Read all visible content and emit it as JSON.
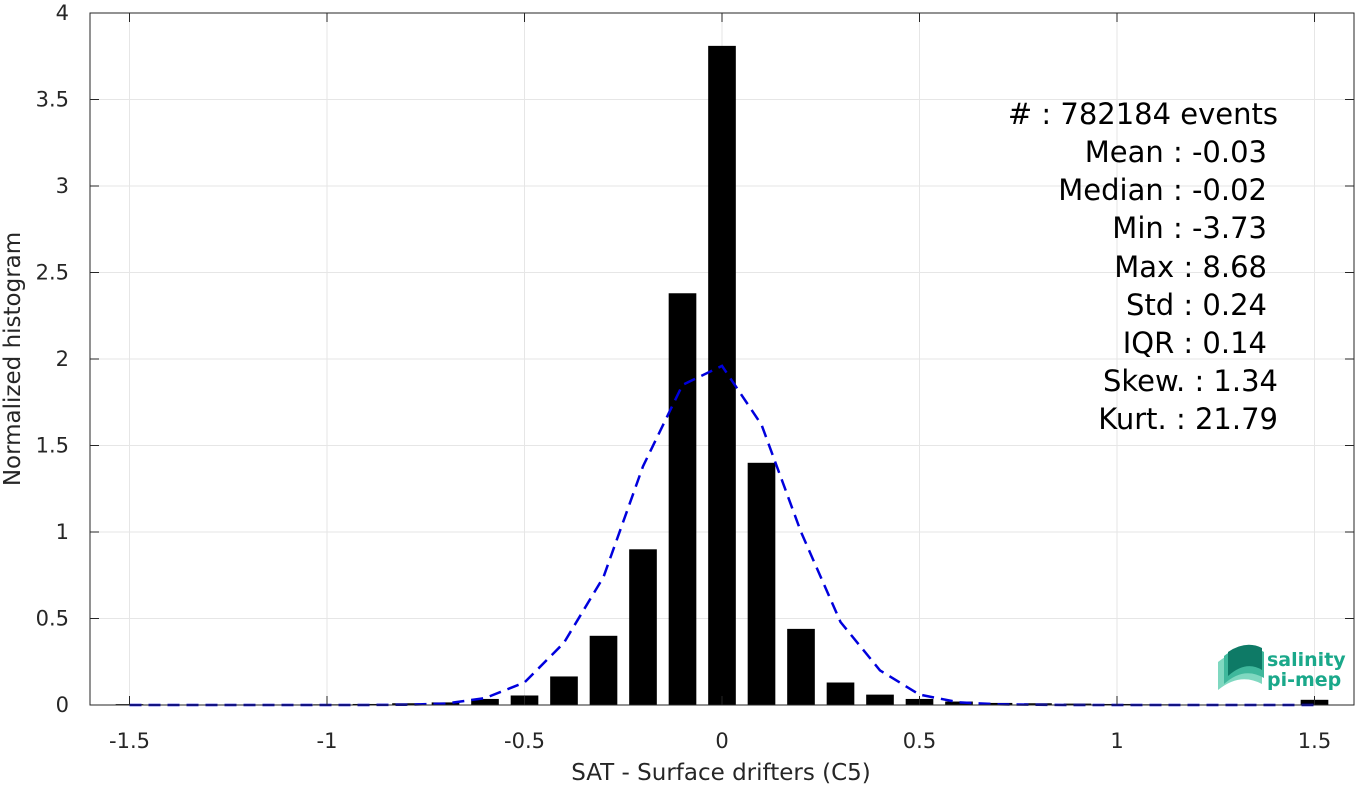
{
  "chart_data": {
    "type": "bar",
    "xlabel": "SAT - Surface drifters (C5)",
    "ylabel": "Normalized histogram",
    "xlim": [
      -1.6,
      1.6
    ],
    "ylim": [
      0,
      4
    ],
    "grid": true,
    "x_ticks": [
      -1.5,
      -1,
      -0.5,
      0,
      0.5,
      1,
      1.5
    ],
    "x_tick_labels": [
      "-1.5",
      "-1",
      "-0.5",
      "0",
      "0.5",
      "1",
      "1.5"
    ],
    "y_ticks": [
      0,
      0.5,
      1,
      1.5,
      2,
      2.5,
      3,
      3.5,
      4
    ],
    "y_tick_labels": [
      "0",
      "0.5",
      "1",
      "1.5",
      "2",
      "2.5",
      "3",
      "3.5",
      "4"
    ],
    "bar_width": 0.07,
    "bars": {
      "x": [
        -1.5,
        -1.4,
        -1.3,
        -1.2,
        -1.1,
        -1.0,
        -0.9,
        -0.8,
        -0.7,
        -0.6,
        -0.5,
        -0.4,
        -0.3,
        -0.2,
        -0.1,
        0.0,
        0.1,
        0.2,
        0.3,
        0.4,
        0.5,
        0.6,
        0.7,
        0.8,
        0.9,
        1.0,
        1.1,
        1.2,
        1.3,
        1.4,
        1.5
      ],
      "values": [
        0.005,
        0.002,
        0.002,
        0.002,
        0.003,
        0.004,
        0.006,
        0.01,
        0.015,
        0.035,
        0.055,
        0.165,
        0.4,
        0.9,
        2.38,
        3.81,
        1.4,
        0.44,
        0.13,
        0.06,
        0.035,
        0.02,
        0.012,
        0.01,
        0.008,
        0.006,
        0.004,
        0.003,
        0.002,
        0.003,
        0.03
      ],
      "color": "#000000"
    },
    "fit_curve": {
      "style": "dashed",
      "color": "#0000dd",
      "x": [
        -1.5,
        -1.4,
        -1.3,
        -1.2,
        -1.1,
        -1.0,
        -0.9,
        -0.8,
        -0.7,
        -0.6,
        -0.5,
        -0.4,
        -0.3,
        -0.2,
        -0.1,
        0.0,
        0.1,
        0.2,
        0.3,
        0.4,
        0.5,
        0.6,
        0.7,
        0.8,
        0.9,
        1.0,
        1.1,
        1.2,
        1.3,
        1.4,
        1.5
      ],
      "y": [
        0,
        0,
        0,
        0,
        0,
        0,
        0,
        0.002,
        0.008,
        0.04,
        0.13,
        0.36,
        0.74,
        1.38,
        1.85,
        1.96,
        1.62,
        1.0,
        0.48,
        0.2,
        0.06,
        0.015,
        0.004,
        0.001,
        0,
        0,
        0,
        0,
        0,
        0,
        0
      ]
    },
    "annotations": [
      "#  : 782184 events",
      "Mean : -0.03",
      "Median : -0.02",
      "Min : -3.73",
      "Max : 8.68",
      "Std : 0.24",
      "IQR : 0.14",
      "Skew. : 1.34",
      "Kurt. : 21.79"
    ]
  },
  "logo": {
    "line1": "salinity",
    "line2": "pi-mep"
  },
  "colors": {
    "grid": "#e6e6e6",
    "axis": "#262626",
    "logo_dark": "#0e7a66",
    "logo_light": "#7fd8c0"
  }
}
